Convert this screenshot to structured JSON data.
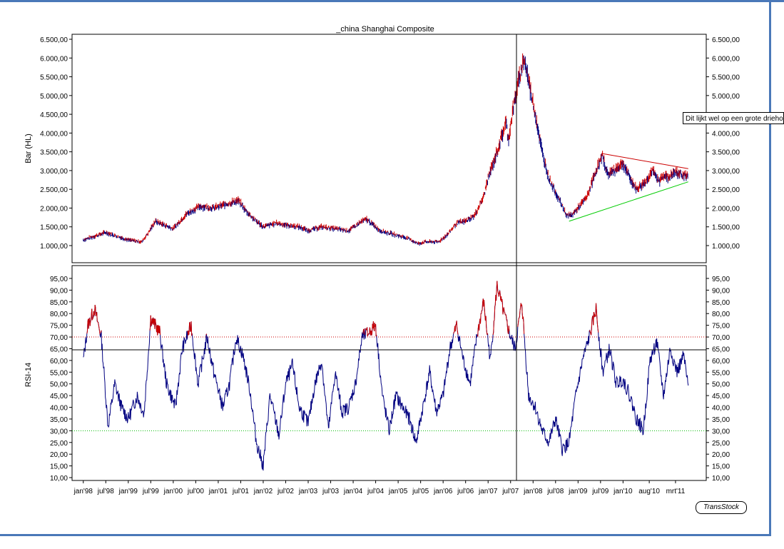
{
  "chart_data": [
    {
      "type": "bar",
      "title": "_china Shanghai Composite",
      "ylabel": "Bar (HL)",
      "ylim": [
        500,
        6500
      ],
      "y_ticks": [
        "6.500,00",
        "6.000,00",
        "5.500,00",
        "5.000,00",
        "4.500,00",
        "4.000,00",
        "3.500,00",
        "3.000,00",
        "2.500,00",
        "2.000,00",
        "1.500,00",
        "1.000,00"
      ],
      "y_tick_values": [
        6500,
        6000,
        5500,
        5000,
        4500,
        4000,
        3500,
        3000,
        2500,
        2000,
        1500,
        1000
      ],
      "series": [
        {
          "x": [
            1998.0,
            1998.25,
            1998.5,
            1998.75,
            1999.0,
            1999.3,
            1999.45,
            1999.6,
            1999.8,
            2000.0,
            2000.3,
            2000.6,
            2000.9,
            2001.3,
            2001.45,
            2001.6,
            2001.8,
            2002.0,
            2002.3,
            2002.5,
            2002.8,
            2003.0,
            2003.3,
            2003.6,
            2003.9,
            2004.2,
            2004.3,
            2004.6,
            2004.9,
            2005.2,
            2005.45,
            2005.6,
            2005.9,
            2006.1,
            2006.3,
            2006.5,
            2006.7,
            2006.9,
            2007.0,
            2007.2,
            2007.4,
            2007.45,
            2007.55,
            2007.7,
            2007.8,
            2007.9,
            2008.05,
            2008.2,
            2008.35,
            2008.55,
            2008.75,
            2008.85,
            2009.0,
            2009.2,
            2009.4,
            2009.55,
            2009.65,
            2009.8,
            2010.0,
            2010.15,
            2010.3,
            2010.5,
            2010.65,
            2010.8,
            2010.9,
            2011.0,
            2011.15,
            2011.3,
            2011.45
          ],
          "values": [
            1150,
            1250,
            1350,
            1250,
            1150,
            1100,
            1350,
            1650,
            1550,
            1450,
            1850,
            2050,
            2000,
            2150,
            2200,
            1950,
            1700,
            1500,
            1600,
            1550,
            1500,
            1400,
            1500,
            1450,
            1400,
            1650,
            1700,
            1400,
            1300,
            1200,
            1050,
            1100,
            1100,
            1300,
            1600,
            1650,
            1800,
            2300,
            2800,
            3500,
            4300,
            3800,
            4600,
            5500,
            6000,
            5400,
            4500,
            3500,
            2800,
            2300,
            1800,
            1800,
            2000,
            2300,
            3000,
            3400,
            2900,
            3000,
            3200,
            2800,
            2500,
            2700,
            3000,
            2700,
            2900,
            2800,
            2950,
            2900,
            2850
          ]
        }
      ],
      "trendlines": [
        {
          "color": "#cc0000",
          "x": [
            2009.55,
            2011.45
          ],
          "y": [
            3450,
            3050
          ]
        },
        {
          "color": "#00cc00",
          "x": [
            2008.8,
            2011.45
          ],
          "y": [
            1650,
            2700
          ]
        }
      ],
      "annotation": "Dit lijkt wel op een grote driehoek"
    },
    {
      "type": "line",
      "ylabel": "RSI-14",
      "ylim": [
        10,
        95
      ],
      "y_ticks": [
        "95,00",
        "90,00",
        "85,00",
        "80,00",
        "75,00",
        "70,00",
        "65,00",
        "60,00",
        "55,00",
        "50,00",
        "45,00",
        "40,00",
        "35,00",
        "30,00",
        "25,00",
        "20,00",
        "15,00",
        "10,00"
      ],
      "y_tick_values": [
        95,
        90,
        85,
        80,
        75,
        70,
        65,
        60,
        55,
        50,
        45,
        40,
        35,
        30,
        25,
        20,
        15,
        10
      ],
      "x_ticks": [
        "jan'98",
        "jul'98",
        "jan'99",
        "jul'99",
        "jan'00",
        "jul'00",
        "jan'01",
        "jul'01",
        "jan'02",
        "jul'02",
        "jan'03",
        "jul'03",
        "jan'04",
        "jul'04",
        "jan'05",
        "jul'05",
        "jan'06",
        "jul'06",
        "jan'07",
        "jul'07",
        "jan'08",
        "jul'08",
        "jan'09",
        "jul'09",
        "jan'10",
        "aug'10",
        "mrt'11"
      ],
      "x_tick_values": [
        1998.0,
        1998.5,
        1999.0,
        1999.5,
        2000.0,
        2000.5,
        2001.0,
        2001.5,
        2002.0,
        2002.5,
        2003.0,
        2003.5,
        2004.0,
        2004.5,
        2005.0,
        2005.5,
        2006.0,
        2006.5,
        2007.0,
        2007.5,
        2008.0,
        2008.5,
        2009.0,
        2009.5,
        2010.0,
        2010.583,
        2011.167
      ],
      "overbought": 70,
      "oversold": 30,
      "series": [
        {
          "x": [
            1998.0,
            1998.1,
            1998.25,
            1998.4,
            1998.55,
            1998.7,
            1998.85,
            1999.0,
            1999.2,
            1999.35,
            1999.5,
            1999.7,
            1999.85,
            2000.05,
            2000.2,
            2000.4,
            2000.55,
            2000.75,
            2000.9,
            2001.1,
            2001.25,
            2001.4,
            2001.55,
            2001.7,
            2001.85,
            2002.0,
            2002.15,
            2002.35,
            2002.5,
            2002.65,
            2002.8,
            2003.0,
            2003.15,
            2003.3,
            2003.45,
            2003.6,
            2003.75,
            2003.9,
            2004.05,
            2004.2,
            2004.35,
            2004.5,
            2004.65,
            2004.8,
            2004.95,
            2005.1,
            2005.25,
            2005.4,
            2005.55,
            2005.7,
            2005.85,
            2006.0,
            2006.15,
            2006.3,
            2006.45,
            2006.6,
            2006.75,
            2006.9,
            2007.05,
            2007.2,
            2007.35,
            2007.5,
            2007.6,
            2007.75,
            2007.9,
            2008.05,
            2008.2,
            2008.35,
            2008.5,
            2008.65,
            2008.8,
            2008.95,
            2009.1,
            2009.25,
            2009.4,
            2009.55,
            2009.7,
            2009.85,
            2010.0,
            2010.15,
            2010.3,
            2010.45,
            2010.6,
            2010.75,
            2010.9,
            2011.05,
            2011.2,
            2011.35,
            2011.45
          ],
          "values": [
            60,
            75,
            82,
            70,
            32,
            50,
            40,
            35,
            45,
            37,
            78,
            72,
            50,
            40,
            65,
            75,
            50,
            70,
            55,
            40,
            50,
            70,
            62,
            48,
            25,
            15,
            45,
            28,
            50,
            58,
            40,
            33,
            50,
            60,
            30,
            55,
            38,
            40,
            50,
            70,
            72,
            75,
            45,
            30,
            45,
            40,
            35,
            25,
            40,
            55,
            38,
            45,
            65,
            75,
            60,
            50,
            70,
            85,
            60,
            92,
            80,
            70,
            65,
            85,
            45,
            40,
            30,
            25,
            35,
            22,
            25,
            45,
            60,
            70,
            82,
            55,
            65,
            50,
            52,
            45,
            35,
            30,
            60,
            68,
            45,
            65,
            55,
            62,
            48
          ]
        }
      ]
    }
  ],
  "watermark": "TransStock"
}
